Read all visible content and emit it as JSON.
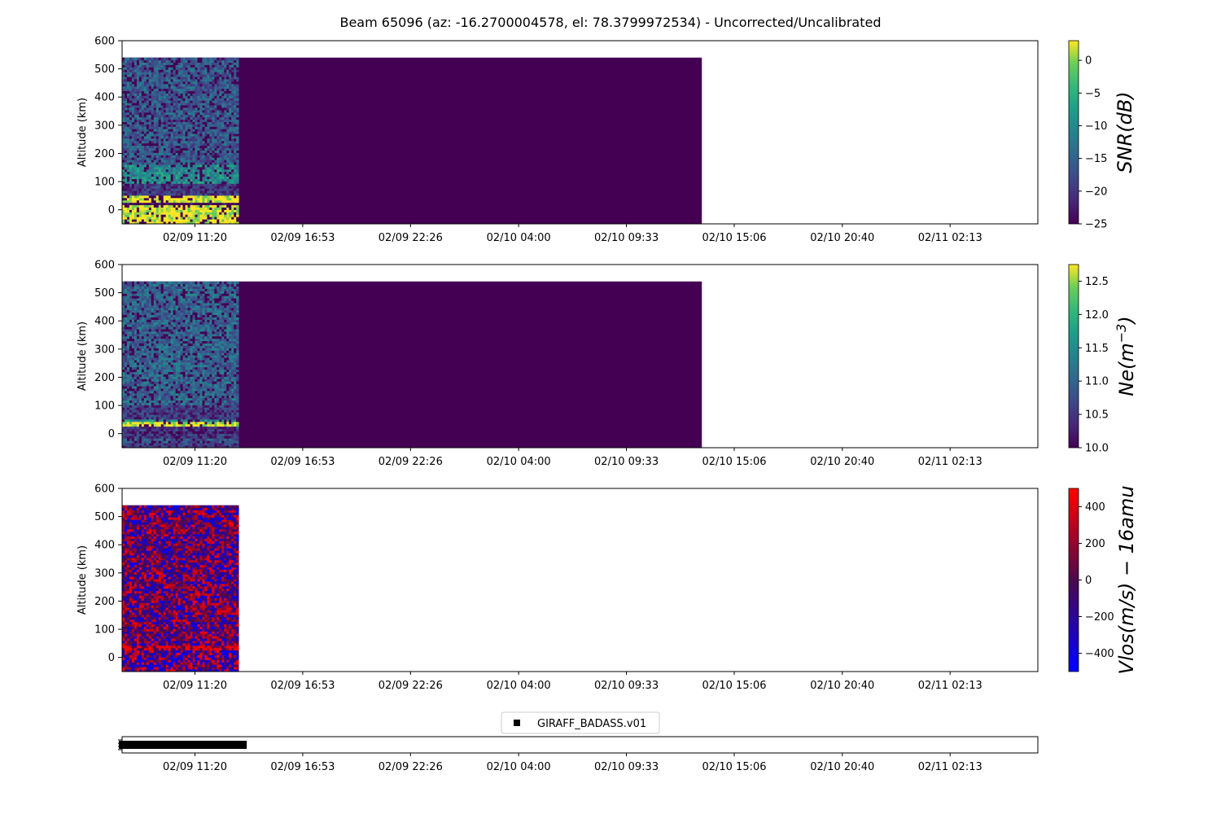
{
  "figure_title": "Beam 65096 (az: -16.2700004578, el: 78.3799972534) - Uncorrected/Uncalibrated",
  "chart_data": [
    {
      "type": "heatmap",
      "panel": "snr",
      "ylabel": "Altitude (km)",
      "ylim": [
        -50,
        600
      ],
      "yticks": [
        0,
        100,
        200,
        300,
        400,
        500,
        600
      ],
      "xlabel": "",
      "x_tick_labels": [
        "02/09 11:20",
        "02/09 16:53",
        "02/09 22:26",
        "02/10 04:00",
        "02/10 09:33",
        "02/10 15:06",
        "02/10 20:40",
        "02/11 02:13"
      ],
      "x_tick_hours": [
        0,
        5.55,
        11.1,
        16.667,
        22.217,
        27.767,
        33.333,
        38.883
      ],
      "xlim_hours": [
        -3.75,
        43.4
      ],
      "data_extent": {
        "start_hours": -3.75,
        "valid_end_hours": 2.25,
        "end_hours": 26.1,
        "alt_min": -50,
        "alt_max": 540
      },
      "colorbar": {
        "label": "SNR(dB)",
        "range": [
          -25,
          3
        ],
        "ticks": [
          0,
          -5,
          -10,
          -15,
          -20,
          -25
        ],
        "ticklabels": [
          "0",
          "−5",
          "−10",
          "−15",
          "−20",
          "−25"
        ],
        "colormap": "viridis"
      },
      "features": [
        {
          "alt_range": [
            -50,
            20
          ],
          "value": 3
        },
        {
          "alt_range": [
            20,
            30
          ],
          "value": -25
        },
        {
          "alt_range": [
            30,
            55
          ],
          "value": 3
        },
        {
          "alt_range": [
            90,
            160
          ],
          "value": -10
        },
        {
          "alt_range": [
            160,
            540
          ],
          "value": -16
        }
      ]
    },
    {
      "type": "heatmap",
      "panel": "ne",
      "ylabel": "Altitude (km)",
      "ylim": [
        -50,
        600
      ],
      "yticks": [
        0,
        100,
        200,
        300,
        400,
        500,
        600
      ],
      "xlabel": "",
      "x_tick_labels": [
        "02/09 11:20",
        "02/09 16:53",
        "02/09 22:26",
        "02/10 04:00",
        "02/10 09:33",
        "02/10 15:06",
        "02/10 20:40",
        "02/11 02:13"
      ],
      "x_tick_hours": [
        0,
        5.55,
        11.1,
        16.667,
        22.217,
        27.767,
        33.333,
        38.883
      ],
      "xlim_hours": [
        -3.75,
        43.4
      ],
      "data_extent": {
        "start_hours": -3.75,
        "valid_end_hours": 2.25,
        "end_hours": 26.1,
        "alt_min": -50,
        "alt_max": 540
      },
      "colorbar": {
        "label": "Ne(m^-3)",
        "range": [
          10,
          12.75
        ],
        "ticks": [
          12.5,
          12.0,
          11.5,
          11.0,
          10.5,
          10.0
        ],
        "ticklabels": [
          "12.5",
          "12.0",
          "11.5",
          "11.0",
          "10.5",
          "10.0"
        ],
        "colormap": "viridis"
      },
      "features": [
        {
          "alt_range": [
            -30,
            -20
          ],
          "value": 10.8
        },
        {
          "alt_range": [
            0,
            10
          ],
          "value": 10.3
        },
        {
          "alt_range": [
            30,
            45
          ],
          "value": 12.7
        },
        {
          "alt_range": [
            45,
            55
          ],
          "value": 11.5
        },
        {
          "alt_range": [
            100,
            540
          ],
          "value": 11.0
        }
      ]
    },
    {
      "type": "heatmap",
      "panel": "vlos",
      "ylabel": "Altitude (km)",
      "ylim": [
        -50,
        600
      ],
      "yticks": [
        0,
        100,
        200,
        300,
        400,
        500,
        600
      ],
      "xlabel": "",
      "x_tick_labels": [
        "02/09 11:20",
        "02/09 16:53",
        "02/09 22:26",
        "02/10 04:00",
        "02/10 09:33",
        "02/10 15:06",
        "02/10 20:40",
        "02/11 02:13"
      ],
      "x_tick_hours": [
        0,
        5.55,
        11.1,
        16.667,
        22.217,
        27.767,
        33.333,
        38.883
      ],
      "xlim_hours": [
        -3.75,
        43.4
      ],
      "data_extent": {
        "start_hours": -3.75,
        "end_hours": 2.25,
        "alt_min": -50,
        "alt_max": 540
      },
      "colorbar": {
        "label": "Vlos(m/s) − 16amu",
        "range": [
          -500,
          500
        ],
        "ticks": [
          400,
          200,
          0,
          -200,
          -400
        ],
        "ticklabels": [
          "400",
          "200",
          "0",
          "−200",
          "−400"
        ],
        "colormap": "blue-red"
      },
      "features": [
        {
          "alt_range": [
            25,
            45
          ],
          "value": 450
        },
        {
          "alt_range": [
            -50,
            25
          ],
          "value": -50
        }
      ]
    },
    {
      "type": "scatter",
      "panel": "timeline",
      "legend": {
        "label": "GIRAFF_BADASS.v01",
        "position": "top-center"
      },
      "marker": "square",
      "color": "#000000",
      "x_tick_labels": [
        "02/09 11:20",
        "02/09 16:53",
        "02/09 22:26",
        "02/10 04:00",
        "02/10 09:33",
        "02/10 15:06",
        "02/10 20:40",
        "02/11 02:13"
      ],
      "x_tick_hours": [
        0,
        5.55,
        11.1,
        16.667,
        22.217,
        27.767,
        33.333,
        38.883
      ],
      "xlim_hours": [
        -3.75,
        43.4
      ],
      "x_range_hours": [
        -3.75,
        2.5
      ]
    }
  ]
}
